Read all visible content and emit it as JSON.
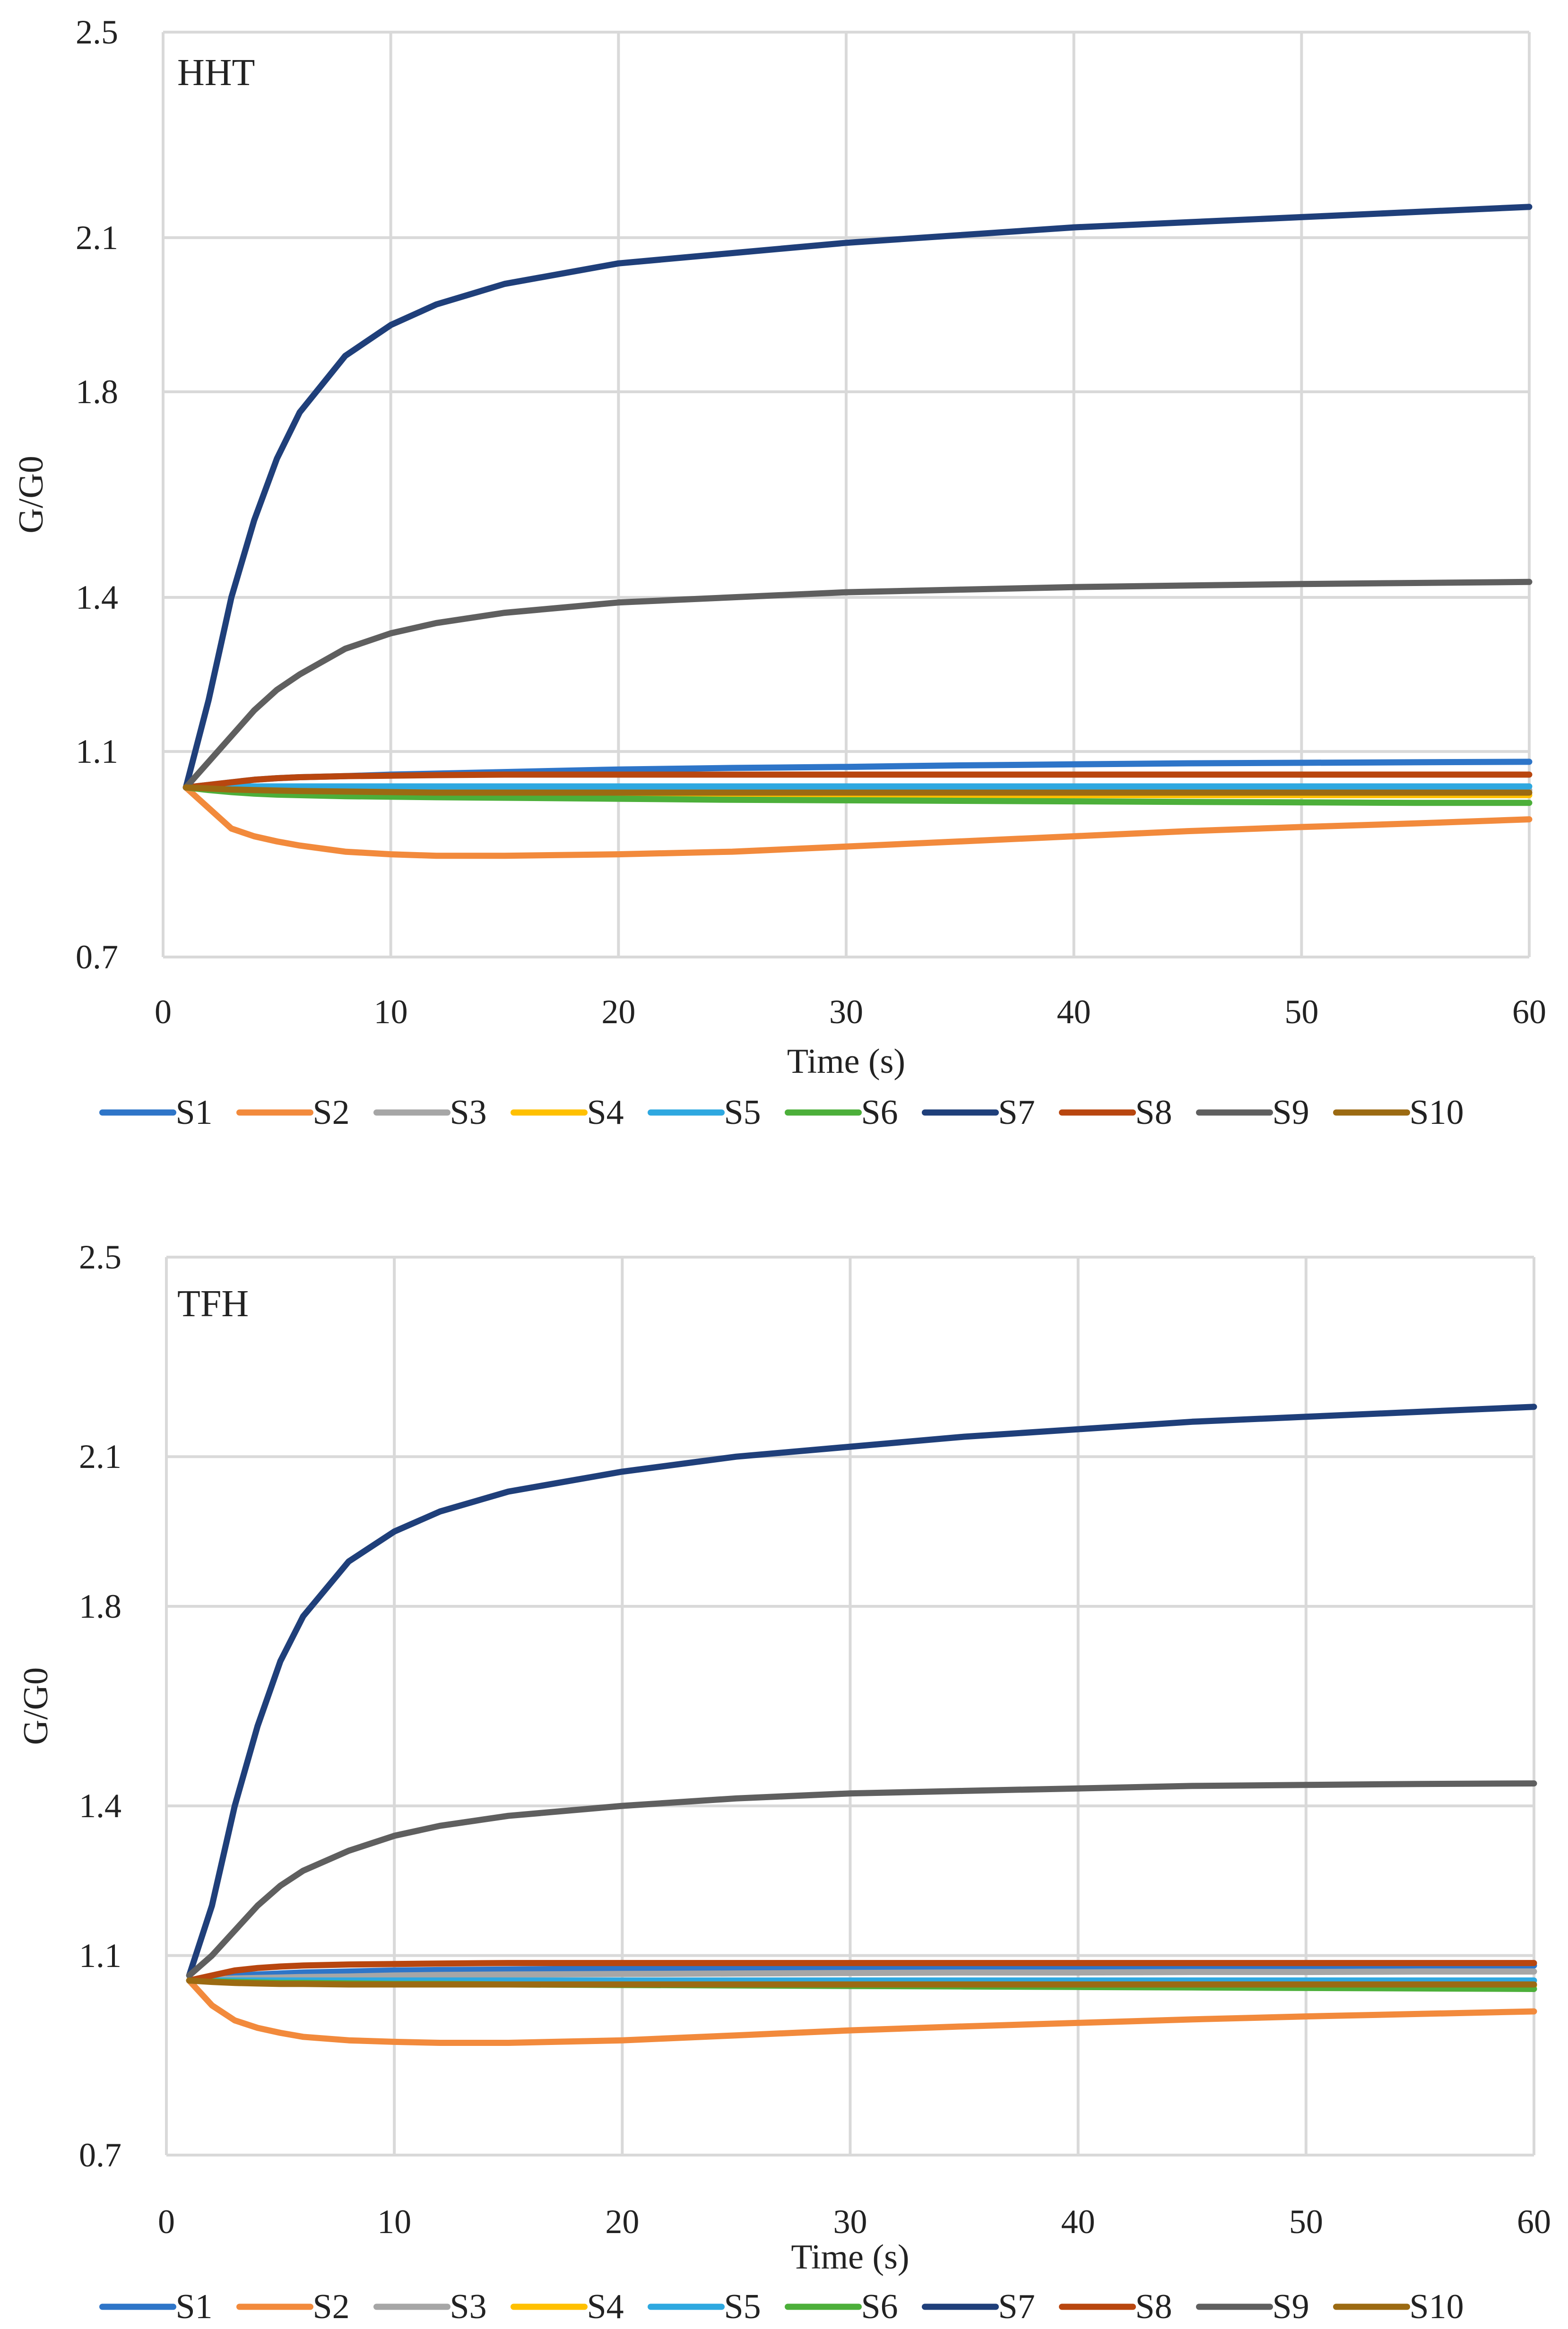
{
  "chart_data": [
    {
      "type": "line",
      "title": "HHT",
      "xlabel": "Time (s)",
      "ylabel": "G/G0",
      "xlim": [
        0,
        60
      ],
      "ylim": [
        0.7,
        2.5
      ],
      "x_ticks": [
        "0",
        "10",
        "20",
        "30",
        "40",
        "50",
        "60"
      ],
      "y_ticks": [
        "0.7",
        "1.1",
        "1.4",
        "1.8",
        "2.1",
        "2.5"
      ],
      "grid": true,
      "legend_position": "bottom",
      "x": [
        1,
        2,
        3,
        4,
        5,
        6,
        8,
        10,
        12,
        15,
        20,
        25,
        30,
        35,
        40,
        45,
        50,
        55,
        60
      ],
      "series": [
        {
          "name": "S1",
          "color": "#2E75C8",
          "values": [
            1.03,
            1.035,
            1.04,
            1.045,
            1.048,
            1.05,
            1.052,
            1.055,
            1.057,
            1.06,
            1.065,
            1.068,
            1.07,
            1.073,
            1.075,
            1.077,
            1.078,
            1.079,
            1.08
          ]
        },
        {
          "name": "S2",
          "color": "#F28A3C",
          "values": [
            1.03,
            0.99,
            0.95,
            0.935,
            0.925,
            0.917,
            0.905,
            0.9,
            0.897,
            0.897,
            0.9,
            0.905,
            0.915,
            0.925,
            0.935,
            0.945,
            0.953,
            0.96,
            0.968
          ]
        },
        {
          "name": "S3",
          "color": "#A6A6A6",
          "values": [
            1.03,
            1.028,
            1.027,
            1.026,
            1.025,
            1.025,
            1.025,
            1.025,
            1.025,
            1.025,
            1.025,
            1.025,
            1.025,
            1.025,
            1.025,
            1.025,
            1.025,
            1.025,
            1.025
          ]
        },
        {
          "name": "S4",
          "color": "#FFC000",
          "values": [
            1.03,
            1.027,
            1.024,
            1.022,
            1.021,
            1.02,
            1.019,
            1.018,
            1.018,
            1.017,
            1.016,
            1.016,
            1.015,
            1.015,
            1.015,
            1.015,
            1.015,
            1.015,
            1.015
          ]
        },
        {
          "name": "S5",
          "color": "#2EA8E0",
          "values": [
            1.03,
            1.031,
            1.032,
            1.032,
            1.032,
            1.032,
            1.032,
            1.032,
            1.032,
            1.032,
            1.032,
            1.032,
            1.032,
            1.032,
            1.032,
            1.032,
            1.032,
            1.032,
            1.032
          ]
        },
        {
          "name": "S6",
          "color": "#4CAF3A",
          "values": [
            1.03,
            1.025,
            1.021,
            1.018,
            1.016,
            1.015,
            1.013,
            1.012,
            1.011,
            1.01,
            1.008,
            1.006,
            1.005,
            1.004,
            1.003,
            1.002,
            1.001,
            1.0,
            1.0
          ]
        },
        {
          "name": "S7",
          "color": "#1F3F7A",
          "values": [
            1.03,
            1.2,
            1.4,
            1.55,
            1.67,
            1.76,
            1.87,
            1.93,
            1.97,
            2.01,
            2.05,
            2.07,
            2.09,
            2.105,
            2.12,
            2.13,
            2.14,
            2.15,
            2.16
          ]
        },
        {
          "name": "S8",
          "color": "#B8460F",
          "values": [
            1.03,
            1.035,
            1.04,
            1.045,
            1.048,
            1.05,
            1.052,
            1.053,
            1.054,
            1.055,
            1.055,
            1.055,
            1.055,
            1.055,
            1.055,
            1.055,
            1.055,
            1.055,
            1.055
          ]
        },
        {
          "name": "S9",
          "color": "#5F5F5F",
          "values": [
            1.03,
            1.08,
            1.13,
            1.18,
            1.22,
            1.25,
            1.3,
            1.33,
            1.35,
            1.37,
            1.39,
            1.4,
            1.41,
            1.415,
            1.42,
            1.423,
            1.426,
            1.428,
            1.43
          ]
        },
        {
          "name": "S10",
          "color": "#9B6A12",
          "values": [
            1.03,
            1.028,
            1.026,
            1.025,
            1.024,
            1.023,
            1.022,
            1.021,
            1.02,
            1.02,
            1.02,
            1.02,
            1.02,
            1.02,
            1.02,
            1.02,
            1.02,
            1.02,
            1.02
          ]
        }
      ]
    },
    {
      "type": "line",
      "title": "TFH",
      "xlabel": "Time (s)",
      "ylabel": "G/G0",
      "xlim": [
        0,
        60
      ],
      "ylim": [
        0.7,
        2.5
      ],
      "x_ticks": [
        "0",
        "10",
        "20",
        "30",
        "40",
        "50",
        "60"
      ],
      "y_ticks": [
        "0.7",
        "1.1",
        "1.4",
        "1.8",
        "2.1",
        "2.5"
      ],
      "grid": true,
      "legend_position": "bottom",
      "x": [
        1,
        2,
        3,
        4,
        5,
        6,
        8,
        10,
        12,
        15,
        20,
        25,
        30,
        35,
        40,
        45,
        50,
        55,
        60
      ],
      "series": [
        {
          "name": "S1",
          "color": "#2E75C8",
          "values": [
            1.05,
            1.055,
            1.06,
            1.062,
            1.064,
            1.066,
            1.068,
            1.07,
            1.071,
            1.072,
            1.074,
            1.075,
            1.076,
            1.077,
            1.078,
            1.078,
            1.079,
            1.08,
            1.08
          ]
        },
        {
          "name": "S2",
          "color": "#F28A3C",
          "values": [
            1.05,
            1.0,
            0.97,
            0.955,
            0.945,
            0.937,
            0.93,
            0.927,
            0.925,
            0.925,
            0.93,
            0.94,
            0.95,
            0.958,
            0.965,
            0.972,
            0.978,
            0.983,
            0.988
          ]
        },
        {
          "name": "S3",
          "color": "#A6A6A6",
          "values": [
            1.05,
            1.052,
            1.054,
            1.055,
            1.056,
            1.057,
            1.058,
            1.06,
            1.061,
            1.062,
            1.063,
            1.064,
            1.065,
            1.066,
            1.066,
            1.067,
            1.067,
            1.068,
            1.068
          ]
        },
        {
          "name": "S4",
          "color": "#FFC000",
          "values": [
            1.05,
            1.048,
            1.047,
            1.046,
            1.045,
            1.045,
            1.044,
            1.044,
            1.043,
            1.043,
            1.042,
            1.042,
            1.041,
            1.041,
            1.04,
            1.04,
            1.04,
            1.04,
            1.04
          ]
        },
        {
          "name": "S5",
          "color": "#2EA8E0",
          "values": [
            1.05,
            1.05,
            1.05,
            1.05,
            1.05,
            1.05,
            1.05,
            1.05,
            1.05,
            1.05,
            1.05,
            1.05,
            1.05,
            1.05,
            1.05,
            1.05,
            1.05,
            1.05,
            1.05
          ]
        },
        {
          "name": "S6",
          "color": "#4CAF3A",
          "values": [
            1.05,
            1.048,
            1.047,
            1.046,
            1.045,
            1.045,
            1.044,
            1.043,
            1.043,
            1.042,
            1.041,
            1.04,
            1.039,
            1.038,
            1.037,
            1.036,
            1.035,
            1.034,
            1.033
          ]
        },
        {
          "name": "S7",
          "color": "#1F3F7A",
          "values": [
            1.06,
            1.2,
            1.4,
            1.56,
            1.69,
            1.78,
            1.89,
            1.95,
            1.99,
            2.03,
            2.07,
            2.1,
            2.12,
            2.14,
            2.155,
            2.17,
            2.18,
            2.19,
            2.2
          ]
        },
        {
          "name": "S8",
          "color": "#B8460F",
          "values": [
            1.05,
            1.06,
            1.07,
            1.075,
            1.078,
            1.08,
            1.082,
            1.083,
            1.084,
            1.085,
            1.085,
            1.085,
            1.085,
            1.085,
            1.085,
            1.085,
            1.085,
            1.085,
            1.085
          ]
        },
        {
          "name": "S9",
          "color": "#5F5F5F",
          "values": [
            1.06,
            1.1,
            1.15,
            1.2,
            1.24,
            1.27,
            1.31,
            1.34,
            1.36,
            1.38,
            1.4,
            1.415,
            1.425,
            1.43,
            1.435,
            1.44,
            1.442,
            1.444,
            1.445
          ]
        },
        {
          "name": "S10",
          "color": "#9B6A12",
          "values": [
            1.05,
            1.047,
            1.045,
            1.044,
            1.043,
            1.043,
            1.042,
            1.042,
            1.042,
            1.042,
            1.042,
            1.042,
            1.042,
            1.042,
            1.042,
            1.042,
            1.042,
            1.042,
            1.042
          ]
        }
      ]
    }
  ]
}
